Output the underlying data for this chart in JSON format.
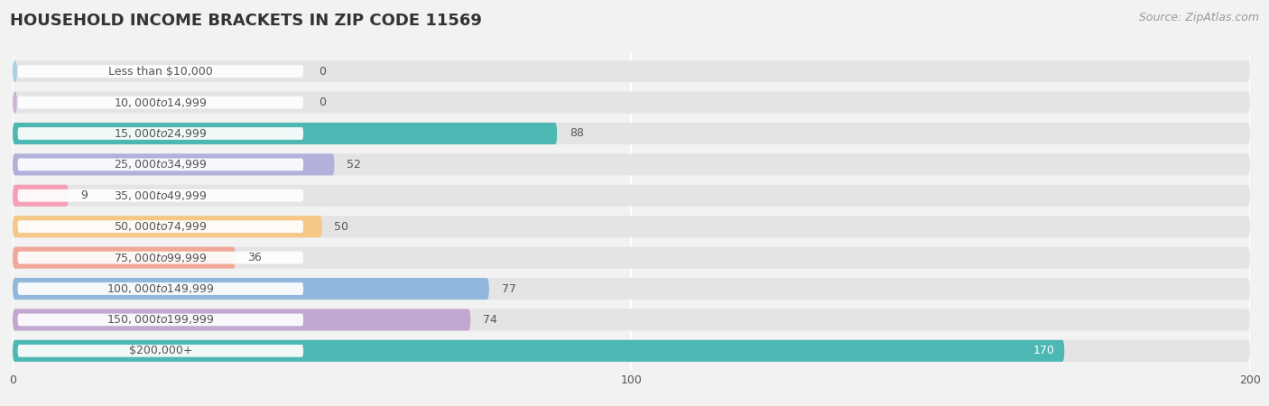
{
  "title": "HOUSEHOLD INCOME BRACKETS IN ZIP CODE 11569",
  "source": "Source: ZipAtlas.com",
  "categories": [
    "Less than $10,000",
    "$10,000 to $14,999",
    "$15,000 to $24,999",
    "$25,000 to $34,999",
    "$35,000 to $49,999",
    "$50,000 to $74,999",
    "$75,000 to $99,999",
    "$100,000 to $149,999",
    "$150,000 to $199,999",
    "$200,000+"
  ],
  "values": [
    0,
    0,
    88,
    52,
    9,
    50,
    36,
    77,
    74,
    170
  ],
  "bar_colors": [
    "#a8cfe8",
    "#ccb3d9",
    "#4db8b3",
    "#b3b0dc",
    "#f5a0b8",
    "#f5c888",
    "#f0a898",
    "#90b8dc",
    "#c0a8d0",
    "#4db8b3"
  ],
  "background_color": "#f2f2f2",
  "bar_bg_color": "#e4e4e4",
  "xlim": [
    0,
    200
  ],
  "xticks": [
    0,
    100,
    200
  ],
  "title_fontsize": 13,
  "label_fontsize": 9,
  "value_fontsize": 9,
  "bar_height": 0.7,
  "label_color": "#555555",
  "value_color": "#555555",
  "title_color": "#333333",
  "source_color": "#999999",
  "source_fontsize": 9,
  "white_label_bg": "#ffffff"
}
